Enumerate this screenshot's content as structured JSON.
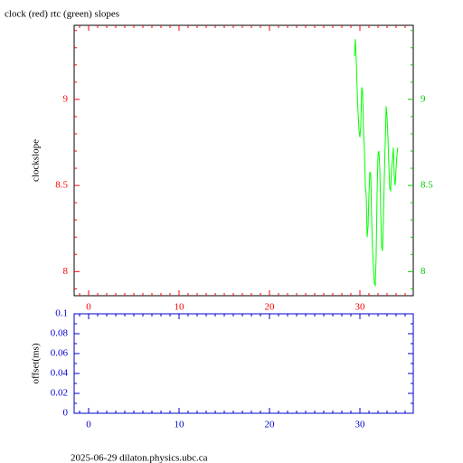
{
  "chart_data": [
    {
      "type": "line",
      "title": "clock (red) rtc (green) slopes",
      "ylabel": "clockslope",
      "xlim": [
        -1.6,
        35.9
      ],
      "ylim": [
        7.86,
        9.43
      ],
      "y2lim": [
        7.86,
        9.43
      ],
      "xticks": [
        0,
        10,
        20,
        30
      ],
      "xminorticks": [
        -1,
        1,
        2,
        3,
        4,
        5,
        6,
        7,
        8,
        9,
        11,
        12,
        13,
        14,
        15,
        16,
        17,
        18,
        19,
        21,
        22,
        23,
        24,
        25,
        26,
        27,
        28,
        29,
        31,
        32,
        33,
        34,
        35
      ],
      "yticks": [
        8,
        8.5,
        9
      ],
      "y2ticks": [
        8,
        8.5,
        9
      ],
      "yminorticks": [
        7.9,
        8.1,
        8.2,
        8.3,
        8.4,
        8.6,
        8.7,
        8.8,
        8.9,
        9.1,
        9.2,
        9.3,
        9.4
      ],
      "xaxis_color": "#ff0000",
      "yaxis_color": "#ff0000",
      "y2axis_color": "#00cc00",
      "frame_color": "#000000",
      "x": [
        29.4,
        29.5,
        29.6,
        29.7,
        29.8,
        29.9,
        30.0,
        30.1,
        30.2,
        30.3,
        30.4,
        30.5,
        30.6,
        30.7,
        30.8,
        30.9,
        31.0,
        31.1,
        31.2,
        31.3,
        31.4,
        31.5,
        31.6,
        31.7,
        31.8,
        31.9,
        32.0,
        32.1,
        32.2,
        32.3,
        32.4,
        32.5,
        32.6,
        32.7,
        32.8,
        32.9,
        33.0,
        33.1,
        33.2,
        33.3,
        33.4,
        33.5,
        33.6,
        33.7,
        33.8,
        33.9,
        34.0,
        34.1,
        34.2
      ],
      "series": [
        {
          "color": "#00ff00",
          "axis": "y2",
          "values": [
            9.25,
            9.35,
            9.22,
            9.05,
            8.92,
            8.82,
            8.78,
            8.85,
            9.07,
            9.04,
            8.82,
            8.7,
            8.5,
            8.44,
            8.2,
            8.26,
            8.45,
            8.58,
            8.56,
            8.3,
            8.12,
            8.02,
            7.93,
            7.92,
            8.1,
            8.45,
            8.68,
            8.7,
            8.6,
            8.35,
            8.15,
            8.12,
            8.3,
            8.55,
            8.75,
            8.96,
            8.9,
            8.78,
            8.62,
            8.48,
            8.47,
            8.6,
            8.65,
            8.72,
            8.55,
            8.5,
            8.6,
            8.68,
            8.72
          ]
        }
      ]
    },
    {
      "type": "line",
      "ylabel": "offset(ms)",
      "xlim": [
        -1.6,
        35.9
      ],
      "ylim": [
        0,
        0.1
      ],
      "xticks": [
        0,
        10,
        20,
        30
      ],
      "xminorticks": [
        -1,
        1,
        2,
        3,
        4,
        5,
        6,
        7,
        8,
        9,
        11,
        12,
        13,
        14,
        15,
        16,
        17,
        18,
        19,
        21,
        22,
        23,
        24,
        25,
        26,
        27,
        28,
        29,
        31,
        32,
        33,
        34,
        35
      ],
      "yticks": [
        0,
        0.02,
        0.04,
        0.06,
        0.08,
        0.1
      ],
      "yminorticks": [
        0.01,
        0.03,
        0.05,
        0.07,
        0.09
      ],
      "xaxis_color": "#0000cc",
      "yaxis_color": "#0000cc",
      "frame_color": "#0000cc",
      "x": [],
      "series": []
    }
  ],
  "footer": "2025-06-29 dilaton.physics.ubc.ca"
}
